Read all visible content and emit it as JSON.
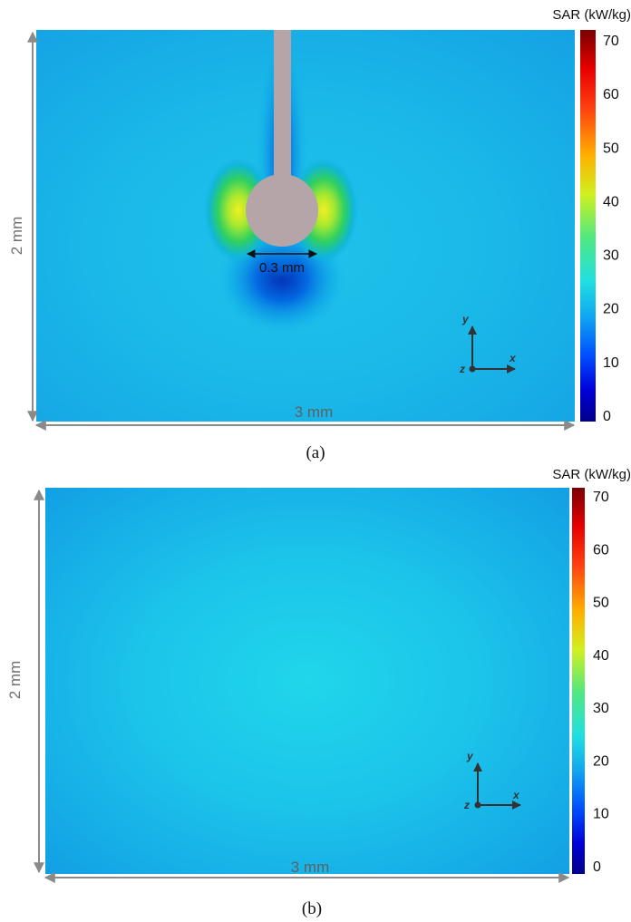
{
  "colorbar": {
    "title": "SAR (kW/kg)",
    "ticks": [
      "70",
      "60",
      "50",
      "40",
      "30",
      "20",
      "10",
      "0"
    ]
  },
  "panel_a": {
    "caption": "(a)",
    "height_label": "2 mm",
    "width_label": "3 mm",
    "probe_label": "0.3 mm",
    "axes": {
      "x": "x",
      "y": "y",
      "z": "z"
    }
  },
  "panel_b": {
    "caption": "(b)",
    "height_label": "2 mm",
    "width_label": "3 mm",
    "axes": {
      "x": "x",
      "y": "y",
      "z": "z"
    }
  },
  "colors": {
    "field_base": "#1aa6e8",
    "field_center": "#1fd0ea",
    "probe": "#b5a5a9",
    "dimension_line": "#8a8a8a"
  }
}
